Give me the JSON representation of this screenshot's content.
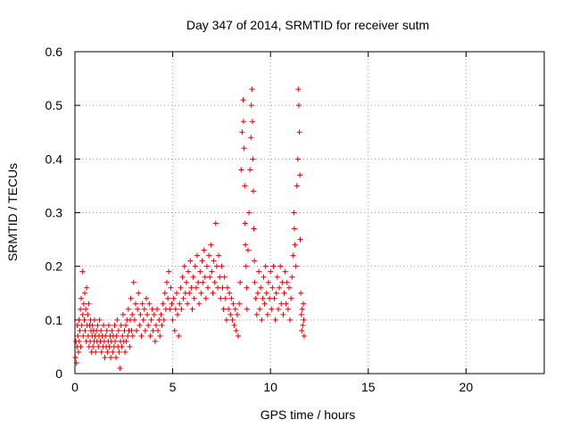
{
  "chart_data": {
    "type": "scatter",
    "title": "Day 347 of 2014, SRMTID for receiver sutm",
    "xlabel": "GPS time / hours",
    "ylabel": "SRMTID / TECUs",
    "xlim": [
      0,
      24
    ],
    "ylim": [
      0,
      0.6
    ],
    "xticks": [
      0,
      5,
      10,
      15,
      20
    ],
    "yticks": [
      0,
      0.1,
      0.2,
      0.3,
      0.4,
      0.5,
      0.6
    ],
    "xtick_labels": [
      "0",
      "5",
      "10",
      "15",
      "20"
    ],
    "ytick_labels": [
      "0",
      "0.1",
      "0.2",
      "0.3",
      "0.4",
      "0.5",
      "0.6"
    ],
    "grid": true,
    "marker": "+",
    "marker_color": "#e00000",
    "series": [
      {
        "name": "SRMTID",
        "points": [
          [
            0.02,
            0.03
          ],
          [
            0.05,
            0.06
          ],
          [
            0.08,
            0.02
          ],
          [
            0.1,
            0.05
          ],
          [
            0.12,
            0.09
          ],
          [
            0.15,
            0.07
          ],
          [
            0.18,
            0.04
          ],
          [
            0.2,
            0.1
          ],
          [
            0.22,
            0.06
          ],
          [
            0.25,
            0.08
          ],
          [
            0.28,
            0.12
          ],
          [
            0.3,
            0.05
          ],
          [
            0.32,
            0.14
          ],
          [
            0.35,
            0.09
          ],
          [
            0.38,
            0.19
          ],
          [
            0.4,
            0.11
          ],
          [
            0.42,
            0.07
          ],
          [
            0.45,
            0.13
          ],
          [
            0.48,
            0.1
          ],
          [
            0.5,
            0.15
          ],
          [
            0.52,
            0.08
          ],
          [
            0.55,
            0.12
          ],
          [
            0.58,
            0.06
          ],
          [
            0.6,
            0.16
          ],
          [
            0.62,
            0.09
          ],
          [
            0.65,
            0.11
          ],
          [
            0.68,
            0.07
          ],
          [
            0.7,
            0.13
          ],
          [
            0.72,
            0.05
          ],
          [
            0.75,
            0.09
          ],
          [
            0.78,
            0.06
          ],
          [
            0.8,
            0.1
          ],
          [
            0.82,
            0.08
          ],
          [
            0.85,
            0.04
          ],
          [
            0.88,
            0.07
          ],
          [
            0.9,
            0.09
          ],
          [
            0.92,
            0.05
          ],
          [
            0.95,
            0.08
          ],
          [
            0.98,
            0.06
          ],
          [
            1.0,
            0.1
          ],
          [
            1.03,
            0.07
          ],
          [
            1.06,
            0.04
          ],
          [
            1.1,
            0.08
          ],
          [
            1.13,
            0.06
          ],
          [
            1.16,
            0.09
          ],
          [
            1.2,
            0.05
          ],
          [
            1.23,
            0.07
          ],
          [
            1.26,
            0.1
          ],
          [
            1.3,
            0.06
          ],
          [
            1.33,
            0.08
          ],
          [
            1.36,
            0.04
          ],
          [
            1.4,
            0.07
          ],
          [
            1.43,
            0.05
          ],
          [
            1.46,
            0.09
          ],
          [
            1.5,
            0.06
          ],
          [
            1.53,
            0.03
          ],
          [
            1.56,
            0.07
          ],
          [
            1.6,
            0.05
          ],
          [
            1.63,
            0.08
          ],
          [
            1.66,
            0.04
          ],
          [
            1.7,
            0.06
          ],
          [
            1.73,
            0.09
          ],
          [
            1.76,
            0.05
          ],
          [
            1.8,
            0.07
          ],
          [
            1.83,
            0.03
          ],
          [
            1.86,
            0.06
          ],
          [
            1.9,
            0.08
          ],
          [
            1.93,
            0.04
          ],
          [
            1.96,
            0.07
          ],
          [
            2.0,
            0.05
          ],
          [
            2.03,
            0.09
          ],
          [
            2.06,
            0.06
          ],
          [
            2.1,
            0.03
          ],
          [
            2.13,
            0.07
          ],
          [
            2.16,
            0.1
          ],
          [
            2.2,
            0.05
          ],
          [
            2.23,
            0.08
          ],
          [
            2.26,
            0.04
          ],
          [
            2.3,
            0.01
          ],
          [
            2.33,
            0.06
          ],
          [
            2.36,
            0.09
          ],
          [
            2.4,
            0.05
          ],
          [
            2.43,
            0.07
          ],
          [
            2.46,
            0.11
          ],
          [
            2.5,
            0.06
          ],
          [
            2.53,
            0.08
          ],
          [
            2.56,
            0.04
          ],
          [
            2.6,
            0.09
          ],
          [
            2.63,
            0.06
          ],
          [
            2.66,
            0.1
          ],
          [
            2.7,
            0.07
          ],
          [
            2.73,
            0.12
          ],
          [
            2.76,
            0.08
          ],
          [
            2.8,
            0.05
          ],
          [
            2.83,
            0.1
          ],
          [
            2.86,
            0.14
          ],
          [
            2.9,
            0.08
          ],
          [
            2.93,
            0.11
          ],
          [
            2.96,
            0.07
          ],
          [
            3.0,
            0.17
          ],
          [
            3.05,
            0.1
          ],
          [
            3.1,
            0.13
          ],
          [
            3.15,
            0.08
          ],
          [
            3.2,
            0.12
          ],
          [
            3.25,
            0.15
          ],
          [
            3.3,
            0.09
          ],
          [
            3.35,
            0.11
          ],
          [
            3.4,
            0.07
          ],
          [
            3.45,
            0.13
          ],
          [
            3.5,
            0.1
          ],
          [
            3.55,
            0.12
          ],
          [
            3.6,
            0.08
          ],
          [
            3.65,
            0.14
          ],
          [
            3.7,
            0.11
          ],
          [
            3.75,
            0.09
          ],
          [
            3.8,
            0.13
          ],
          [
            3.85,
            0.07
          ],
          [
            3.9,
            0.1
          ],
          [
            3.95,
            0.12
          ],
          [
            4.0,
            0.08
          ],
          [
            4.05,
            0.11
          ],
          [
            4.1,
            0.06
          ],
          [
            4.15,
            0.09
          ],
          [
            4.2,
            0.12
          ],
          [
            4.25,
            0.08
          ],
          [
            4.3,
            0.1
          ],
          [
            4.35,
            0.07
          ],
          [
            4.4,
            0.11
          ],
          [
            4.45,
            0.09
          ],
          [
            4.5,
            0.13
          ],
          [
            4.55,
            0.1
          ],
          [
            4.6,
            0.15
          ],
          [
            4.65,
            0.12
          ],
          [
            4.7,
            0.17
          ],
          [
            4.75,
            0.14
          ],
          [
            4.8,
            0.19
          ],
          [
            4.85,
            0.12
          ],
          [
            4.9,
            0.16
          ],
          [
            4.95,
            0.13
          ],
          [
            5.0,
            0.1
          ],
          [
            5.05,
            0.14
          ],
          [
            5.1,
            0.08
          ],
          [
            5.15,
            0.12
          ],
          [
            5.2,
            0.15
          ],
          [
            5.25,
            0.11
          ],
          [
            5.3,
            0.07
          ],
          [
            5.35,
            0.13
          ],
          [
            5.4,
            0.16
          ],
          [
            5.45,
            0.12
          ],
          [
            5.5,
            0.18
          ],
          [
            5.55,
            0.14
          ],
          [
            5.6,
            0.2
          ],
          [
            5.65,
            0.15
          ],
          [
            5.7,
            0.17
          ],
          [
            5.75,
            0.13
          ],
          [
            5.8,
            0.19
          ],
          [
            5.85,
            0.15
          ],
          [
            5.9,
            0.21
          ],
          [
            5.95,
            0.16
          ],
          [
            6.0,
            0.12
          ],
          [
            6.05,
            0.18
          ],
          [
            6.1,
            0.14
          ],
          [
            6.15,
            0.2
          ],
          [
            6.2,
            0.16
          ],
          [
            6.25,
            0.22
          ],
          [
            6.3,
            0.17
          ],
          [
            6.35,
            0.13
          ],
          [
            6.4,
            0.19
          ],
          [
            6.45,
            0.15
          ],
          [
            6.5,
            0.21
          ],
          [
            6.55,
            0.17
          ],
          [
            6.6,
            0.23
          ],
          [
            6.65,
            0.18
          ],
          [
            6.7,
            0.14
          ],
          [
            6.75,
            0.2
          ],
          [
            6.8,
            0.16
          ],
          [
            6.85,
            0.22
          ],
          [
            6.9,
            0.18
          ],
          [
            6.95,
            0.24
          ],
          [
            7.0,
            0.19
          ],
          [
            7.05,
            0.15
          ],
          [
            7.1,
            0.21
          ],
          [
            7.15,
            0.17
          ],
          [
            7.2,
            0.28
          ],
          [
            7.25,
            0.2
          ],
          [
            7.3,
            0.16
          ],
          [
            7.35,
            0.22
          ],
          [
            7.4,
            0.18
          ],
          [
            7.45,
            0.14
          ],
          [
            7.5,
            0.2
          ],
          [
            7.55,
            0.16
          ],
          [
            7.6,
            0.12
          ],
          [
            7.65,
            0.18
          ],
          [
            7.7,
            0.14
          ],
          [
            7.75,
            0.1
          ],
          [
            7.8,
            0.16
          ],
          [
            7.85,
            0.12
          ],
          [
            7.9,
            0.15
          ],
          [
            7.95,
            0.11
          ],
          [
            8.0,
            0.14
          ],
          [
            8.05,
            0.1
          ],
          [
            8.1,
            0.13
          ],
          [
            8.15,
            0.09
          ],
          [
            8.2,
            0.12
          ],
          [
            8.25,
            0.08
          ],
          [
            8.3,
            0.11
          ],
          [
            8.35,
            0.07
          ],
          [
            8.4,
            0.13
          ],
          [
            8.45,
            0.17
          ],
          [
            8.5,
            0.38
          ],
          [
            8.55,
            0.45
          ],
          [
            8.6,
            0.51
          ],
          [
            8.62,
            0.47
          ],
          [
            8.65,
            0.42
          ],
          [
            8.68,
            0.35
          ],
          [
            8.7,
            0.28
          ],
          [
            8.72,
            0.24
          ],
          [
            8.75,
            0.2
          ],
          [
            8.78,
            0.16
          ],
          [
            8.8,
            0.12
          ],
          [
            8.85,
            0.23
          ],
          [
            8.9,
            0.3
          ],
          [
            8.95,
            0.38
          ],
          [
            9.0,
            0.44
          ],
          [
            9.02,
            0.5
          ],
          [
            9.05,
            0.53
          ],
          [
            9.08,
            0.47
          ],
          [
            9.1,
            0.4
          ],
          [
            9.12,
            0.34
          ],
          [
            9.15,
            0.27
          ],
          [
            9.18,
            0.21
          ],
          [
            9.2,
            0.17
          ],
          [
            9.25,
            0.14
          ],
          [
            9.3,
            0.11
          ],
          [
            9.35,
            0.15
          ],
          [
            9.4,
            0.19
          ],
          [
            9.45,
            0.12
          ],
          [
            9.5,
            0.16
          ],
          [
            9.55,
            0.1
          ],
          [
            9.6,
            0.14
          ],
          [
            9.65,
            0.18
          ],
          [
            9.7,
            0.13
          ],
          [
            9.75,
            0.2
          ],
          [
            9.8,
            0.15
          ],
          [
            9.85,
            0.11
          ],
          [
            9.9,
            0.17
          ],
          [
            9.95,
            0.14
          ],
          [
            10.0,
            0.19
          ],
          [
            10.05,
            0.12
          ],
          [
            10.1,
            0.16
          ],
          [
            10.15,
            0.2
          ],
          [
            10.2,
            0.14
          ],
          [
            10.25,
            0.1
          ],
          [
            10.3,
            0.15
          ],
          [
            10.35,
            0.18
          ],
          [
            10.4,
            0.12
          ],
          [
            10.45,
            0.16
          ],
          [
            10.5,
            0.2
          ],
          [
            10.55,
            0.13
          ],
          [
            10.6,
            0.17
          ],
          [
            10.65,
            0.11
          ],
          [
            10.7,
            0.15
          ],
          [
            10.75,
            0.19
          ],
          [
            10.8,
            0.13
          ],
          [
            10.85,
            0.17
          ],
          [
            10.9,
            0.12
          ],
          [
            10.95,
            0.16
          ],
          [
            11.0,
            0.1
          ],
          [
            11.05,
            0.14
          ],
          [
            11.1,
            0.18
          ],
          [
            11.15,
            0.22
          ],
          [
            11.2,
            0.3
          ],
          [
            11.22,
            0.27
          ],
          [
            11.25,
            0.24
          ],
          [
            11.3,
            0.2
          ],
          [
            11.35,
            0.35
          ],
          [
            11.4,
            0.4
          ],
          [
            11.42,
            0.53
          ],
          [
            11.45,
            0.5
          ],
          [
            11.48,
            0.45
          ],
          [
            11.5,
            0.37
          ],
          [
            11.52,
            0.25
          ],
          [
            11.55,
            0.15
          ],
          [
            11.58,
            0.11
          ],
          [
            11.6,
            0.08
          ],
          [
            11.62,
            0.12
          ],
          [
            11.65,
            0.09
          ],
          [
            11.68,
            0.13
          ],
          [
            11.7,
            0.1
          ],
          [
            11.72,
            0.07
          ]
        ]
      }
    ]
  }
}
